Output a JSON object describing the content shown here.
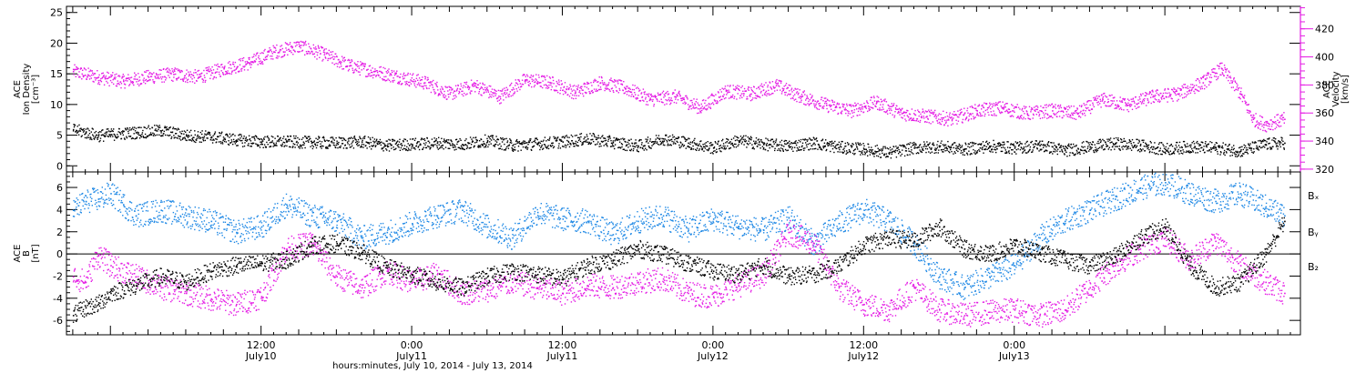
{
  "colors": {
    "density": "#000000",
    "velocity": "#e41ae4",
    "bx": "#000000",
    "by": "#1e88e5",
    "bz": "#e41ae4",
    "axis": "#000000"
  },
  "chart_data": [
    {
      "type": "scatter",
      "panel": "plasma",
      "left_axis": {
        "label_lines": [
          "ACE",
          "Ion Density",
          "[cm⁻³]"
        ],
        "ylim": [
          -1,
          26
        ],
        "ticks": [
          "0",
          "5",
          "10",
          "15",
          "20",
          "25"
        ]
      },
      "right_axis": {
        "label_lines": [
          "ACE",
          "Velocity",
          "[km/s]"
        ],
        "ylim": [
          318,
          436
        ],
        "ticks": [
          "320",
          "340",
          "360",
          "380",
          "400",
          "420"
        ]
      },
      "xlim_hours": [
        -3.5,
        94.8
      ],
      "series": [
        {
          "key": "density",
          "axis": "left",
          "points": [
            [
              -3,
              6
            ],
            [
              -2,
              5.5
            ],
            [
              -1,
              5
            ],
            [
              0,
              5.2
            ],
            [
              2,
              5.5
            ],
            [
              4,
              5.8
            ],
            [
              6,
              5
            ],
            [
              8,
              4.8
            ],
            [
              10,
              4.3
            ],
            [
              12,
              4
            ],
            [
              14,
              4
            ],
            [
              16,
              3.9
            ],
            [
              18,
              3.8
            ],
            [
              20,
              4
            ],
            [
              22,
              3.4
            ],
            [
              24,
              3.6
            ],
            [
              26,
              3.8
            ],
            [
              28,
              3.6
            ],
            [
              30,
              4.2
            ],
            [
              32,
              3.4
            ],
            [
              34,
              3.7
            ],
            [
              36,
              4
            ],
            [
              38,
              4.5
            ],
            [
              40,
              3.9
            ],
            [
              42,
              3.3
            ],
            [
              44,
              4.5
            ],
            [
              46,
              3.8
            ],
            [
              48,
              3
            ],
            [
              50,
              4.2
            ],
            [
              52,
              3.6
            ],
            [
              54,
              3.3
            ],
            [
              56,
              3.8
            ],
            [
              58,
              3.1
            ],
            [
              60,
              2.8
            ],
            [
              62,
              2.2
            ],
            [
              64,
              3
            ],
            [
              66,
              3.2
            ],
            [
              68,
              2.8
            ],
            [
              70,
              3.3
            ],
            [
              72,
              3
            ],
            [
              74,
              3.4
            ],
            [
              76,
              2.6
            ],
            [
              78,
              3.2
            ],
            [
              80,
              3.7
            ],
            [
              82,
              3.4
            ],
            [
              84,
              2.8
            ],
            [
              86,
              3.2
            ],
            [
              88,
              3
            ],
            [
              90,
              2.5
            ],
            [
              92,
              3.6
            ],
            [
              93.5,
              3.8
            ]
          ]
        },
        {
          "key": "velocity",
          "axis": "right",
          "points": [
            [
              -3,
              390
            ],
            [
              -1,
              386
            ],
            [
              1,
              383
            ],
            [
              3,
              386
            ],
            [
              5,
              388
            ],
            [
              7,
              386
            ],
            [
              9,
              392
            ],
            [
              11,
              396
            ],
            [
              13,
              404
            ],
            [
              15,
              408
            ],
            [
              17,
              402
            ],
            [
              19,
              394
            ],
            [
              21,
              390
            ],
            [
              23,
              386
            ],
            [
              25,
              382
            ],
            [
              27,
              374
            ],
            [
              29,
              380
            ],
            [
              31,
              372
            ],
            [
              33,
              384
            ],
            [
              35,
              382
            ],
            [
              37,
              375
            ],
            [
              39,
              382
            ],
            [
              41,
              378
            ],
            [
              43,
              370
            ],
            [
              45,
              372
            ],
            [
              47,
              364
            ],
            [
              49,
              376
            ],
            [
              51,
              374
            ],
            [
              53,
              380
            ],
            [
              55,
              372
            ],
            [
              57,
              366
            ],
            [
              59,
              362
            ],
            [
              61,
              368
            ],
            [
              63,
              360
            ],
            [
              65,
              358
            ],
            [
              67,
              356
            ],
            [
              69,
              362
            ],
            [
              71,
              364
            ],
            [
              73,
              360
            ],
            [
              75,
              362
            ],
            [
              77,
              360
            ],
            [
              79,
              370
            ],
            [
              81,
              366
            ],
            [
              83,
              372
            ],
            [
              85,
              374
            ],
            [
              87,
              382
            ],
            [
              88.5,
              392
            ],
            [
              90,
              374
            ],
            [
              91,
              356
            ],
            [
              92,
              352
            ],
            [
              93.5,
              356
            ]
          ]
        }
      ]
    },
    {
      "type": "scatter",
      "panel": "magnetic",
      "left_axis": {
        "label_lines": [
          "ACE",
          "B",
          "[nT]"
        ],
        "ylim": [
          -7.3,
          7.4
        ],
        "ticks": [
          "-6",
          "-4",
          "-2",
          "0",
          "2",
          "4",
          "6"
        ]
      },
      "xlim_hours": [
        -3.5,
        94.8
      ],
      "zero_line": true,
      "legend": [
        "Bₓ",
        "Bᵧ",
        "B₂"
      ],
      "series": [
        {
          "key": "bx",
          "name": "Bₓ",
          "points": [
            [
              -3,
              -5.5
            ],
            [
              -2,
              -4.8
            ],
            [
              -1,
              -4.5
            ],
            [
              0,
              -3.5
            ],
            [
              2,
              -2.8
            ],
            [
              4,
              -2
            ],
            [
              6,
              -2.5
            ],
            [
              8,
              -1.5
            ],
            [
              10,
              -1
            ],
            [
              12,
              -0.8
            ],
            [
              14,
              -0.5
            ],
            [
              16,
              0.8
            ],
            [
              18,
              1
            ],
            [
              20,
              0.2
            ],
            [
              22,
              -1.2
            ],
            [
              24,
              -1.8
            ],
            [
              26,
              -2.5
            ],
            [
              28,
              -3
            ],
            [
              30,
              -2
            ],
            [
              32,
              -1.5
            ],
            [
              34,
              -1.8
            ],
            [
              36,
              -2.2
            ],
            [
              38,
              -1
            ],
            [
              40,
              -0.5
            ],
            [
              42,
              0.5
            ],
            [
              44,
              0
            ],
            [
              46,
              -0.8
            ],
            [
              48,
              -1.5
            ],
            [
              50,
              -1.8
            ],
            [
              52,
              -1
            ],
            [
              54,
              -2
            ],
            [
              56,
              -1.8
            ],
            [
              58,
              -1
            ],
            [
              60,
              0.8
            ],
            [
              62,
              1.5
            ],
            [
              64,
              1.2
            ],
            [
              66,
              2.5
            ],
            [
              68,
              0.5
            ],
            [
              70,
              0
            ],
            [
              72,
              0.8
            ],
            [
              74,
              0.2
            ],
            [
              76,
              -0.5
            ],
            [
              78,
              -1
            ],
            [
              80,
              -0.2
            ],
            [
              82,
              1.5
            ],
            [
              84,
              2.5
            ],
            [
              86,
              -1
            ],
            [
              88,
              -3
            ],
            [
              90,
              -2.5
            ],
            [
              92,
              0
            ],
            [
              93.5,
              3
            ]
          ]
        },
        {
          "key": "by",
          "name": "Bᵧ",
          "points": [
            [
              -3,
              4
            ],
            [
              -2,
              4.8
            ],
            [
              -1,
              5
            ],
            [
              0,
              5.5
            ],
            [
              1,
              4.5
            ],
            [
              2,
              3.5
            ],
            [
              4,
              4
            ],
            [
              6,
              3.5
            ],
            [
              8,
              3
            ],
            [
              10,
              2
            ],
            [
              12,
              2.5
            ],
            [
              14,
              4.5
            ],
            [
              16,
              3.5
            ],
            [
              18,
              3
            ],
            [
              20,
              1.5
            ],
            [
              22,
              2
            ],
            [
              24,
              2.8
            ],
            [
              26,
              3.5
            ],
            [
              28,
              4
            ],
            [
              30,
              2.5
            ],
            [
              32,
              1.5
            ],
            [
              34,
              3.8
            ],
            [
              36,
              3.2
            ],
            [
              38,
              3
            ],
            [
              40,
              1.8
            ],
            [
              42,
              3
            ],
            [
              44,
              3.5
            ],
            [
              46,
              2.2
            ],
            [
              48,
              3.2
            ],
            [
              50,
              2.5
            ],
            [
              52,
              2.2
            ],
            [
              54,
              3.3
            ],
            [
              56,
              1
            ],
            [
              58,
              2.8
            ],
            [
              60,
              4
            ],
            [
              62,
              3
            ],
            [
              64,
              1
            ],
            [
              66,
              -2
            ],
            [
              68,
              -3
            ],
            [
              70,
              -2
            ],
            [
              72,
              -1
            ],
            [
              74,
              1.5
            ],
            [
              76,
              3
            ],
            [
              78,
              4
            ],
            [
              80,
              5
            ],
            [
              82,
              6
            ],
            [
              84,
              6.5
            ],
            [
              86,
              5.5
            ],
            [
              88,
              4.8
            ],
            [
              90,
              5.5
            ],
            [
              92,
              4.3
            ],
            [
              93.5,
              3.5
            ]
          ]
        },
        {
          "key": "bz",
          "name": "B₂",
          "points": [
            [
              -3,
              -2
            ],
            [
              -2,
              -2.5
            ],
            [
              -1,
              0
            ],
            [
              0,
              -1
            ],
            [
              2,
              -2
            ],
            [
              4,
              -3
            ],
            [
              6,
              -3.5
            ],
            [
              8,
              -4
            ],
            [
              10,
              -4.5
            ],
            [
              12,
              -3.8
            ],
            [
              14,
              0.5
            ],
            [
              16,
              1
            ],
            [
              18,
              -2
            ],
            [
              20,
              -3
            ],
            [
              22,
              -1.5
            ],
            [
              24,
              -2.5
            ],
            [
              26,
              -1.8
            ],
            [
              28,
              -3.5
            ],
            [
              30,
              -3.2
            ],
            [
              32,
              -2.5
            ],
            [
              34,
              -3
            ],
            [
              36,
              -3.5
            ],
            [
              38,
              -2.8
            ],
            [
              40,
              -3
            ],
            [
              42,
              -2.5
            ],
            [
              44,
              -2.2
            ],
            [
              46,
              -3.5
            ],
            [
              48,
              -3.8
            ],
            [
              50,
              -2.8
            ],
            [
              52,
              -1.8
            ],
            [
              54,
              2
            ],
            [
              56,
              1
            ],
            [
              58,
              -3
            ],
            [
              60,
              -4.5
            ],
            [
              62,
              -5
            ],
            [
              64,
              -3
            ],
            [
              66,
              -5
            ],
            [
              68,
              -5.5
            ],
            [
              70,
              -5.2
            ],
            [
              72,
              -5
            ],
            [
              74,
              -5.5
            ],
            [
              76,
              -5
            ],
            [
              78,
              -3
            ],
            [
              80,
              -1
            ],
            [
              82,
              0.5
            ],
            [
              84,
              1.5
            ],
            [
              86,
              -0.5
            ],
            [
              88,
              1.2
            ],
            [
              90,
              -1
            ],
            [
              92,
              -2.5
            ],
            [
              93.5,
              -3.5
            ]
          ]
        }
      ]
    }
  ],
  "x_axis": {
    "ticks": [
      {
        "hour": 12,
        "time": "12:00",
        "date": "July10"
      },
      {
        "hour": 24,
        "time": "0:00",
        "date": "July11"
      },
      {
        "hour": 36,
        "time": "12:00",
        "date": "July11"
      },
      {
        "hour": 48,
        "time": "0:00",
        "date": "July12"
      },
      {
        "hour": 60,
        "time": "12:00",
        "date": "July12"
      },
      {
        "hour": 72,
        "time": "0:00",
        "date": "July13"
      }
    ],
    "title": "hours:minutes, July 10, 2014 - July 13, 2014"
  }
}
